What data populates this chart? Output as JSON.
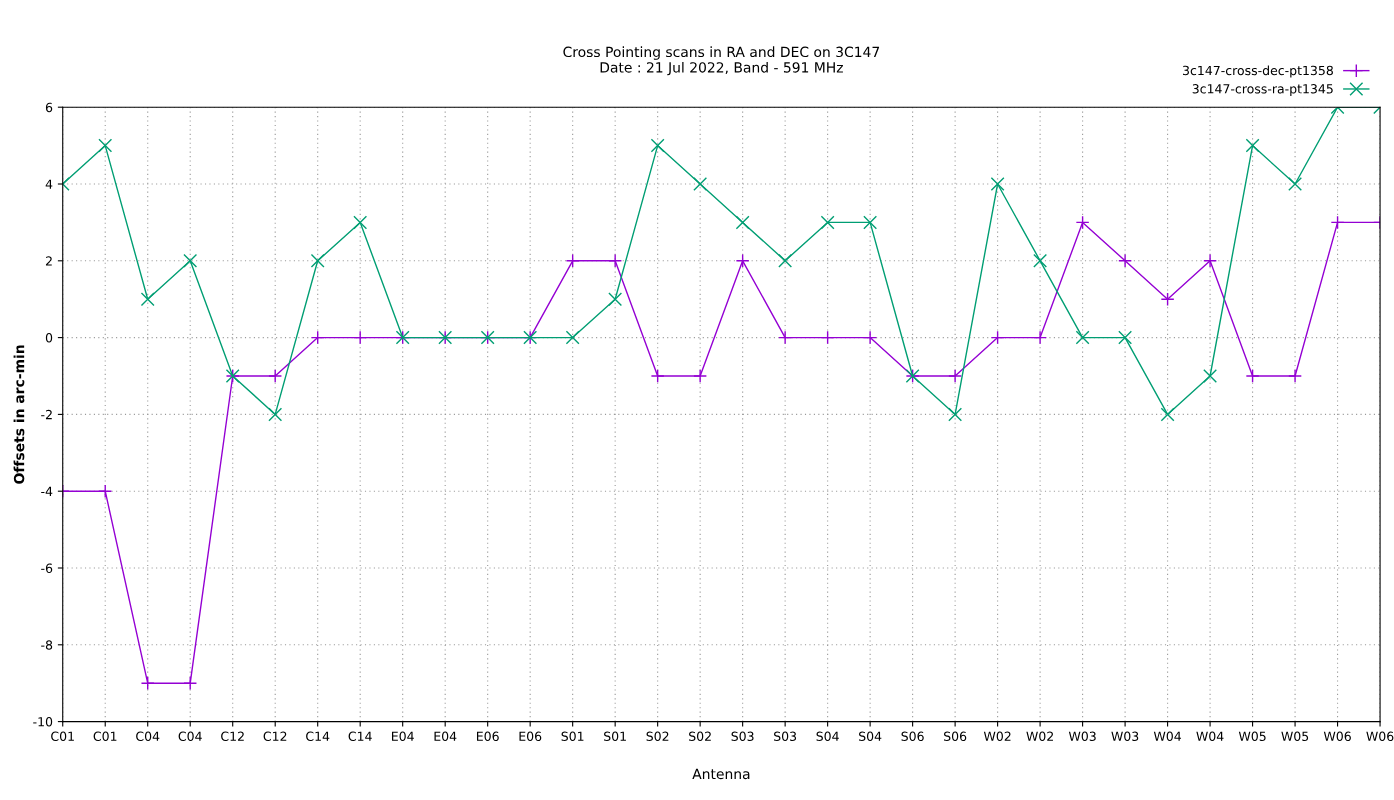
{
  "chart_data": {
    "type": "line",
    "title": "Cross Pointing scans in RA and DEC on 3C147\nDate : 21 Jul 2022, Band - 591 MHz",
    "xlabel": "Antenna",
    "ylabel": "Offsets in arc-min",
    "categories": [
      "C01",
      "C01",
      "C04",
      "C04",
      "C12",
      "C12",
      "C14",
      "C14",
      "E04",
      "E04",
      "E06",
      "E06",
      "S01",
      "S01",
      "S02",
      "S02",
      "S03",
      "S03",
      "S04",
      "S04",
      "S06",
      "S06",
      "W02",
      "W02",
      "W03",
      "W03",
      "W04",
      "W04",
      "W05",
      "W05",
      "W06",
      "W06"
    ],
    "series": [
      {
        "name": "3c147-cross-dec-pt1358",
        "color": "#9400d3",
        "marker": "cross",
        "values": [
          -4,
          -4,
          -9,
          -9,
          -1,
          -1,
          0,
          0,
          0,
          0,
          0,
          0,
          2,
          2,
          -1,
          -1,
          2,
          0,
          0,
          0,
          -1,
          -1,
          0,
          0,
          3,
          2,
          1,
          2,
          -1,
          -1,
          3,
          3
        ]
      },
      {
        "name": "3c147-cross-ra-pt1345",
        "color": "#009e73",
        "marker": "cross",
        "values": [
          4,
          5,
          1,
          2,
          -1,
          -2,
          2,
          3,
          0,
          0,
          0,
          0,
          0,
          1,
          5,
          4,
          3,
          2,
          3,
          3,
          -1,
          -2,
          4,
          2,
          0,
          0,
          -2,
          -1,
          5,
          4,
          6,
          6
        ]
      }
    ],
    "ylim": [
      -10,
      6
    ],
    "yticks": [
      -10,
      -8,
      -6,
      -4,
      -2,
      0,
      2,
      4,
      6
    ],
    "grid": true,
    "legend": "top right",
    "line_style": "solid"
  }
}
